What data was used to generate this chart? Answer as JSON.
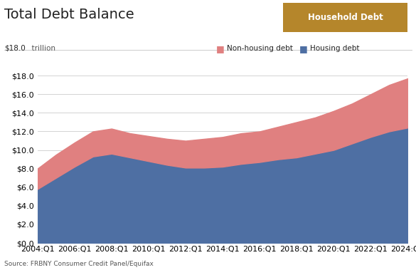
{
  "title": "Total Debt Balance",
  "ylabel_top_dollar": "$18.0",
  "ylabel_top_unit": "  trillion",
  "source": "Source: FRBNY Consumer Credit Panel/Equifax",
  "badge_text": "Household Debt",
  "badge_color": "#b5862b",
  "housing_color": "#4e6fa3",
  "nonhousing_color": "#e08080",
  "background_color": "#ffffff",
  "ylim": [
    0,
    18
  ],
  "yticks": [
    0.0,
    2.0,
    4.0,
    6.0,
    8.0,
    10.0,
    12.0,
    14.0,
    16.0,
    18.0
  ],
  "years": [
    2004,
    2005,
    2006,
    2007,
    2008,
    2009,
    2010,
    2011,
    2012,
    2013,
    2014,
    2015,
    2016,
    2017,
    2018,
    2019,
    2020,
    2021,
    2022,
    2023,
    2024
  ],
  "housing_debt": [
    5.8,
    7.0,
    8.2,
    9.3,
    9.6,
    9.2,
    8.8,
    8.4,
    8.1,
    8.1,
    8.2,
    8.5,
    8.7,
    9.0,
    9.2,
    9.6,
    10.0,
    10.7,
    11.4,
    12.0,
    12.4
  ],
  "total_debt": [
    8.0,
    9.5,
    10.8,
    12.0,
    12.3,
    11.8,
    11.5,
    11.2,
    11.0,
    11.2,
    11.4,
    11.8,
    12.0,
    12.5,
    13.0,
    13.5,
    14.2,
    15.0,
    16.0,
    17.0,
    17.7
  ]
}
